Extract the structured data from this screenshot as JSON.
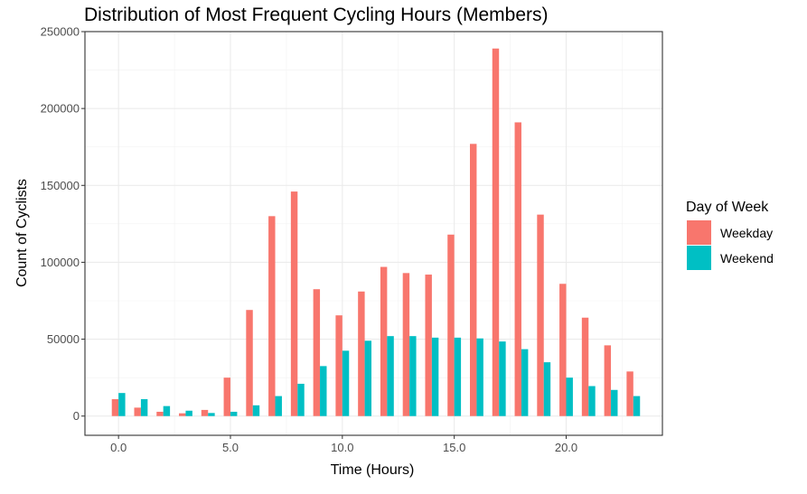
{
  "chart_data": {
    "type": "bar",
    "title": "Distribution of Most Frequent Cycling Hours (Members)",
    "xlabel": "Time (Hours)",
    "ylabel": "Count of Cyclists",
    "x": [
      0,
      1,
      2,
      3,
      4,
      5,
      6,
      7,
      8,
      9,
      10,
      11,
      12,
      13,
      14,
      15,
      16,
      17,
      18,
      19,
      20,
      21,
      22,
      23
    ],
    "xlim": [
      -1.5,
      24.3
    ],
    "ylim": [
      -12500,
      250000
    ],
    "x_ticks": [
      0,
      5,
      10,
      15,
      20
    ],
    "x_tick_labels": [
      "0.0",
      "5.0",
      "10.0",
      "15.0",
      "20.0"
    ],
    "y_ticks": [
      0,
      50000,
      100000,
      150000,
      200000,
      250000
    ],
    "y_tick_labels": [
      "0",
      "50000",
      "100000",
      "150000",
      "200000",
      "250000"
    ],
    "grid": true,
    "legend": {
      "title": "Day of Week",
      "position": "right"
    },
    "series": [
      {
        "name": "Weekday",
        "color": "#F8766D",
        "values": [
          11000,
          5500,
          2800,
          1800,
          4000,
          25000,
          69000,
          130000,
          146000,
          82500,
          65500,
          81000,
          97000,
          93000,
          92000,
          118000,
          177000,
          239000,
          191000,
          131000,
          86000,
          64000,
          46000,
          29000
        ]
      },
      {
        "name": "Weekend",
        "color": "#00BFC4",
        "values": [
          15000,
          11000,
          6500,
          3500,
          2000,
          2800,
          7000,
          13000,
          21000,
          32500,
          42500,
          49000,
          52000,
          52000,
          51000,
          51000,
          50500,
          48500,
          43500,
          35000,
          25000,
          19500,
          17000,
          13000
        ]
      }
    ]
  }
}
